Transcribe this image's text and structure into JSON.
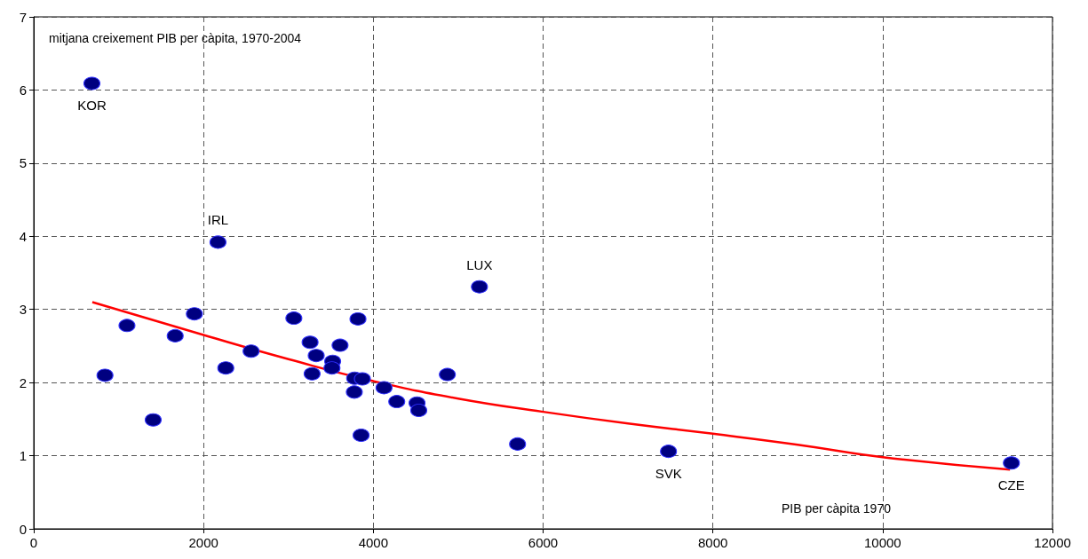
{
  "chart_data": {
    "type": "scatter",
    "xlabel": "PIB per càpita 1970",
    "ylabel": "mitjana creixement PIB per càpita, 1970-2004",
    "series": [
      {
        "color": "#000080",
        "marker": "circle",
        "x": [
          685,
          2170,
          1098,
          1892,
          1666,
          839,
          1407,
          2262,
          2560,
          3064,
          3255,
          3327,
          3279,
          3521,
          3513,
          3608,
          3819,
          3780,
          3871,
          3776,
          3856,
          4126,
          4276,
          4515,
          4535,
          4872,
          5250,
          5699,
          7477,
          11516
        ],
        "values": [
          6.09,
          3.92,
          2.78,
          2.94,
          2.64,
          2.1,
          1.49,
          2.2,
          2.43,
          2.88,
          2.55,
          2.37,
          2.12,
          2.29,
          2.2,
          2.51,
          2.87,
          2.06,
          2.05,
          1.87,
          1.28,
          1.93,
          1.74,
          1.72,
          1.62,
          2.11,
          3.31,
          1.16,
          1.06,
          0.9
        ]
      },
      {
        "type": "line",
        "color": "#ff0000",
        "marker": "none",
        "x": [
          690,
          2000,
          3000,
          4000,
          5000,
          6000,
          7000,
          8000,
          9000,
          10000,
          11500
        ],
        "values": [
          3.1,
          2.65,
          2.32,
          2.02,
          1.78,
          1.6,
          1.44,
          1.3,
          1.15,
          0.98,
          0.81
        ]
      }
    ],
    "annotations": [
      {
        "text": "KOR",
        "x": 685,
        "y": 6.09
      },
      {
        "text": "IRL",
        "x": 2170,
        "y": 3.92
      },
      {
        "text": "LUX",
        "x": 5250,
        "y": 3.31
      },
      {
        "text": "SVK",
        "x": 7477,
        "y": 1.06
      },
      {
        "text": "CZE",
        "x": 11516,
        "y": 0.9
      }
    ],
    "xlim": [
      0,
      12000
    ],
    "xticks": [
      0,
      2000,
      4000,
      6000,
      8000,
      10000,
      12000
    ],
    "ylim": [
      0,
      7
    ],
    "yticks": [
      0,
      1,
      2,
      3,
      4,
      5,
      6,
      7
    ],
    "grid": true,
    "line_style": "solid"
  }
}
